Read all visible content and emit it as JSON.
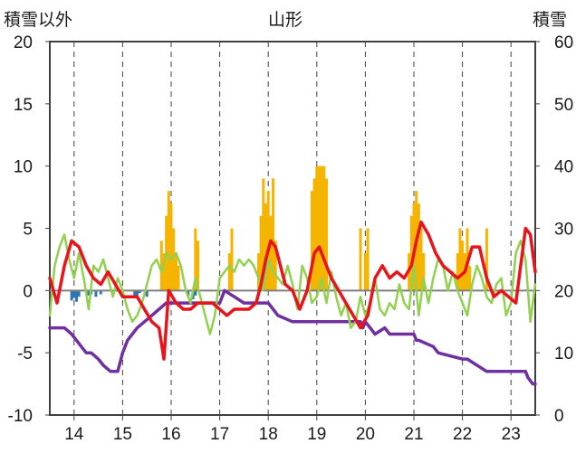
{
  "chart_data": {
    "type": "bar+line",
    "title": "山形",
    "y_left_label": "積雪以外",
    "y_right_label": "積雪",
    "y_left_ticks": [
      "20",
      "15",
      "10",
      "5",
      "0",
      "-5",
      "-10"
    ],
    "y_right_ticks": [
      "60",
      "50",
      "40",
      "30",
      "20",
      "10",
      "0"
    ],
    "x_ticks": [
      "14",
      "15",
      "16",
      "17",
      "18",
      "19",
      "20",
      "21",
      "22",
      "23"
    ],
    "ylim_left": [
      -10,
      20
    ],
    "ylim_right": [
      0,
      60
    ],
    "xlim": [
      13.5,
      23.5
    ],
    "grid": "vertical dashed lines at each day, zero line solid",
    "colors": {
      "snowfall_bars": "#f5b400",
      "precip_bars": "#2e75b6",
      "temperature_red": "#e8141b",
      "humidity_green": "#92d050",
      "snow_depth_purple": "#7030a0",
      "zero_line": "#7f7f7f"
    },
    "series": [
      {
        "id": "snowfall",
        "kind": "bar",
        "axis": "left",
        "color": "#f5b400",
        "x": [
          15.8,
          15.85,
          15.9,
          15.95,
          16.0,
          16.05,
          16.1,
          16.15,
          16.5,
          16.55,
          17.2,
          17.25,
          17.8,
          17.85,
          17.9,
          17.95,
          18.0,
          18.05,
          18.1,
          18.15,
          18.9,
          18.95,
          19.0,
          19.05,
          19.1,
          19.15,
          19.2,
          19.9,
          20.0,
          20.05,
          20.9,
          20.95,
          21.0,
          21.05,
          21.1,
          21.15,
          21.2,
          21.9,
          21.95,
          22.0,
          22.05,
          22.1,
          22.15,
          22.5
        ],
        "values": [
          4,
          3,
          6,
          8,
          7,
          5,
          3,
          2,
          5,
          4,
          3,
          5,
          3,
          6,
          9,
          7,
          8,
          6,
          9,
          4,
          8,
          9,
          10,
          10,
          10,
          10,
          9,
          5,
          3,
          5,
          3,
          6,
          7,
          8,
          7,
          5,
          3,
          3,
          5,
          4,
          3,
          5,
          2,
          5
        ]
      },
      {
        "id": "precip",
        "kind": "bar",
        "axis": "left",
        "color": "#2e75b6",
        "x": [
          13.95,
          14.0,
          14.05,
          14.1,
          14.3,
          14.35,
          14.45,
          14.55,
          15.25,
          15.3,
          15.35,
          15.5,
          16.35,
          16.45,
          16.5
        ],
        "values": [
          -0.8,
          -0.6,
          -0.9,
          -0.5,
          -0.4,
          -0.3,
          -0.5,
          -0.3,
          -0.6,
          -0.4,
          -0.2,
          -0.5,
          -0.5,
          -0.7,
          -0.4
        ]
      },
      {
        "id": "temperature",
        "kind": "line",
        "axis": "left",
        "color": "#e8141b",
        "x": [
          13.5,
          13.65,
          13.8,
          13.95,
          14.1,
          14.25,
          14.4,
          14.55,
          14.7,
          14.85,
          15.0,
          15.15,
          15.3,
          15.45,
          15.6,
          15.75,
          15.85,
          15.95,
          16.1,
          16.25,
          16.4,
          16.55,
          16.7,
          16.85,
          17.0,
          17.15,
          17.3,
          17.45,
          17.6,
          17.75,
          17.85,
          17.95,
          18.05,
          18.15,
          18.25,
          18.35,
          18.5,
          18.65,
          18.8,
          18.95,
          19.05,
          19.15,
          19.3,
          19.45,
          19.6,
          19.75,
          19.9,
          20.05,
          20.2,
          20.35,
          20.5,
          20.65,
          20.8,
          20.95,
          21.05,
          21.15,
          21.3,
          21.45,
          21.6,
          21.75,
          21.9,
          22.05,
          22.2,
          22.35,
          22.5,
          22.65,
          22.8,
          22.95,
          23.1,
          23.2,
          23.3,
          23.4,
          23.5
        ],
        "values": [
          1.0,
          -1.0,
          2.0,
          4.0,
          3.5,
          2.0,
          1.0,
          0.5,
          1.5,
          0.5,
          -0.5,
          -0.5,
          -0.5,
          -1.5,
          -2.5,
          -3.0,
          -5.5,
          0.0,
          -1.0,
          -1.5,
          -1.5,
          -1.0,
          -1.0,
          -1.0,
          -1.5,
          -2.0,
          -1.5,
          -1.5,
          -1.5,
          -1.0,
          0.5,
          2.5,
          4.0,
          3.5,
          2.0,
          0.5,
          0.0,
          -1.5,
          0.0,
          3.0,
          3.5,
          2.5,
          1.0,
          0.0,
          -1.0,
          -2.0,
          -3.0,
          -2.0,
          1.0,
          2.0,
          1.0,
          1.5,
          1.0,
          2.0,
          4.0,
          5.5,
          4.5,
          3.0,
          2.0,
          1.5,
          1.0,
          1.5,
          3.5,
          3.5,
          1.0,
          -0.5,
          0.0,
          -0.5,
          -1.0,
          2.0,
          5.0,
          4.5,
          1.5
        ]
      },
      {
        "id": "humidity",
        "kind": "line",
        "axis": "left",
        "color": "#92d050",
        "x": [
          13.5,
          13.6,
          13.7,
          13.8,
          13.9,
          14.0,
          14.1,
          14.2,
          14.3,
          14.4,
          14.5,
          14.6,
          14.7,
          14.8,
          14.9,
          15.0,
          15.1,
          15.2,
          15.3,
          15.4,
          15.5,
          15.6,
          15.7,
          15.8,
          15.9,
          16.0,
          16.1,
          16.2,
          16.3,
          16.4,
          16.5,
          16.6,
          16.7,
          16.8,
          16.9,
          17.0,
          17.1,
          17.2,
          17.3,
          17.4,
          17.5,
          17.6,
          17.7,
          17.8,
          17.9,
          18.0,
          18.1,
          18.2,
          18.3,
          18.4,
          18.5,
          18.6,
          18.7,
          18.8,
          18.9,
          19.0,
          19.1,
          19.2,
          19.3,
          19.4,
          19.5,
          19.6,
          19.7,
          19.8,
          19.9,
          20.0,
          20.1,
          20.2,
          20.3,
          20.4,
          20.5,
          20.6,
          20.7,
          20.8,
          20.9,
          21.0,
          21.1,
          21.2,
          21.3,
          21.4,
          21.5,
          21.6,
          21.7,
          21.8,
          21.9,
          22.0,
          22.1,
          22.2,
          22.3,
          22.4,
          22.5,
          22.6,
          22.7,
          22.8,
          22.9,
          23.0,
          23.1,
          23.2,
          23.3,
          23.4,
          23.5
        ],
        "values": [
          -2.0,
          2.0,
          3.5,
          4.5,
          2.5,
          1.0,
          3.0,
          1.0,
          -1.5,
          2.0,
          1.5,
          2.5,
          1.0,
          -0.5,
          1.0,
          0.0,
          -1.5,
          -2.5,
          -2.0,
          -1.0,
          0.5,
          2.0,
          2.5,
          1.5,
          3.0,
          2.5,
          3.0,
          2.0,
          0.0,
          -1.0,
          1.0,
          -0.5,
          -2.0,
          -3.5,
          -2.0,
          1.0,
          1.5,
          2.0,
          1.5,
          2.5,
          2.0,
          2.5,
          2.0,
          1.0,
          0.0,
          2.5,
          1.5,
          1.0,
          0.5,
          2.0,
          0.5,
          -1.5,
          2.0,
          1.0,
          -1.0,
          -0.5,
          1.0,
          -1.0,
          1.5,
          -0.5,
          -2.0,
          -1.0,
          -3.0,
          -2.5,
          -0.5,
          -2.0,
          -1.0,
          1.0,
          -1.5,
          -2.0,
          -1.0,
          -1.5,
          0.5,
          -1.0,
          -1.5,
          2.0,
          -2.0,
          1.0,
          -1.0,
          1.0,
          2.5,
          2.0,
          0.0,
          1.5,
          0.0,
          -1.0,
          -2.0,
          0.5,
          2.0,
          1.0,
          -0.5,
          -1.0,
          0.5,
          1.0,
          -2.0,
          -1.0,
          3.0,
          4.0,
          2.5,
          -2.5,
          0.5
        ]
      },
      {
        "id": "snow_depth",
        "kind": "line",
        "axis": "right",
        "color": "#7030a0",
        "x": [
          13.5,
          13.8,
          13.95,
          14.05,
          14.15,
          14.25,
          14.35,
          14.5,
          14.6,
          14.75,
          14.85,
          14.9,
          15.0,
          15.1,
          15.2,
          15.3,
          15.45,
          15.6,
          15.75,
          15.9,
          16.0,
          16.5,
          16.9,
          17.0,
          17.1,
          17.3,
          17.5,
          17.7,
          17.9,
          18.0,
          18.1,
          18.2,
          18.5,
          19.0,
          19.5,
          19.9,
          19.95,
          20.0,
          20.1,
          20.2,
          20.4,
          20.5,
          21.0,
          21.05,
          21.1,
          21.4,
          21.5,
          22.0,
          22.05,
          22.1,
          22.5,
          22.9,
          23.1,
          23.3,
          23.35,
          23.45,
          23.5
        ],
        "values": [
          14,
          14,
          13,
          12,
          11,
          10,
          10,
          9,
          8,
          7,
          7,
          7,
          10,
          12,
          13,
          14,
          15,
          16,
          17,
          18,
          18,
          18,
          18,
          18,
          20,
          19,
          18,
          18,
          18,
          18,
          17,
          16,
          15,
          15,
          15,
          15,
          14,
          15,
          14,
          13,
          14,
          13,
          13,
          12,
          12,
          11,
          10,
          9,
          9,
          9,
          7,
          7,
          7,
          7,
          6,
          5,
          5
        ]
      }
    ]
  }
}
